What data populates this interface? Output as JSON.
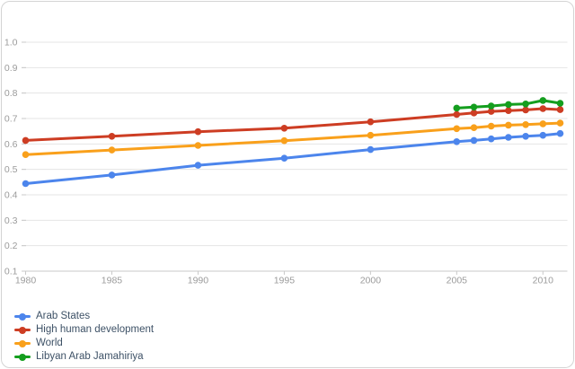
{
  "chart_data": {
    "type": "line",
    "title": "",
    "x": [
      1980,
      1985,
      1990,
      1995,
      2000,
      2005,
      2006,
      2007,
      2008,
      2009,
      2010,
      2011
    ],
    "series": [
      {
        "name": "Arab States",
        "color": "#4c85ec",
        "values": [
          0.444,
          0.478,
          0.516,
          0.544,
          0.578,
          0.609,
          0.614,
          0.62,
          0.626,
          0.63,
          0.634,
          0.641
        ]
      },
      {
        "name": "High human development",
        "color": "#cd3d23",
        "values": [
          0.614,
          0.63,
          0.648,
          0.662,
          0.687,
          0.716,
          0.722,
          0.728,
          0.731,
          0.734,
          0.739,
          0.735
        ]
      },
      {
        "name": "World",
        "color": "#f9a01b",
        "values": [
          0.558,
          0.576,
          0.594,
          0.613,
          0.634,
          0.66,
          0.664,
          0.67,
          0.674,
          0.676,
          0.679,
          0.682
        ]
      },
      {
        "name": "Libyan Arab Jamahiriya",
        "color": "#149e1e",
        "values": [
          null,
          null,
          null,
          null,
          null,
          0.741,
          0.745,
          0.749,
          0.755,
          0.757,
          0.771,
          0.76
        ]
      }
    ],
    "xlim": [
      1980,
      2011
    ],
    "ylim": [
      0.1,
      1.0
    ],
    "grid": true,
    "legend_position": "bottom-left",
    "y_ticks": [
      {
        "label": "1.0",
        "value": 1.0
      },
      {
        "label": "0.9",
        "value": 0.9
      },
      {
        "label": "0.8",
        "value": 0.8
      },
      {
        "label": "0.7",
        "value": 0.7
      },
      {
        "label": "0.6",
        "value": 0.6
      },
      {
        "label": "0.5",
        "value": 0.5
      },
      {
        "label": "0.4",
        "value": 0.4
      },
      {
        "label": "0.3",
        "value": 0.3
      },
      {
        "label": "0.2",
        "value": 0.2
      },
      {
        "label": "0.1",
        "value": 0.1
      }
    ],
    "x_ticks": [
      {
        "label": "1980",
        "value": 1980
      },
      {
        "label": "1985",
        "value": 1985
      },
      {
        "label": "1990",
        "value": 1990
      },
      {
        "label": "1995",
        "value": 1995
      },
      {
        "label": "2000",
        "value": 2000
      },
      {
        "label": "2005",
        "value": 2005
      },
      {
        "label": "2010",
        "value": 2010
      }
    ]
  },
  "colors": {
    "grid": "#e4e4e4",
    "axis_line": "#c9c9c9",
    "tick_label": "#9b9b9b",
    "legend_text": "#3d5166",
    "card_border": "#d4d4d4",
    "background": "#ffffff"
  }
}
